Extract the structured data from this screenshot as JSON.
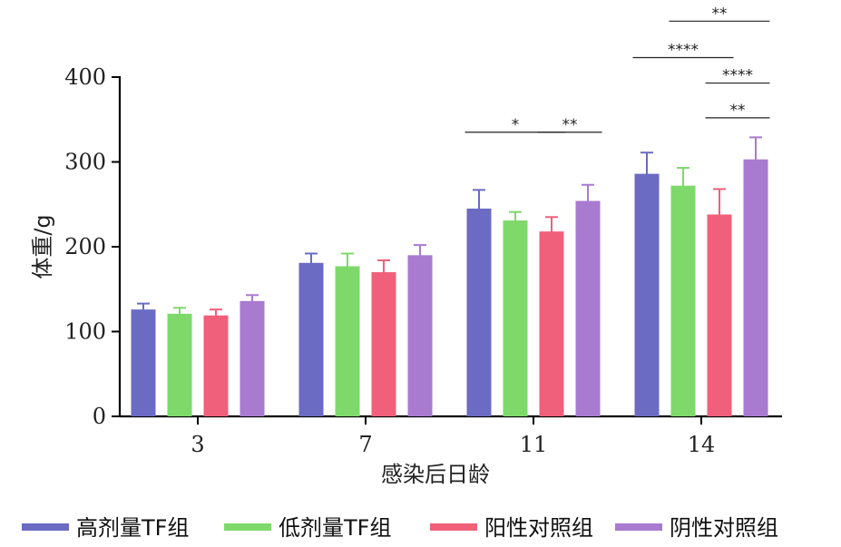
{
  "chart_data": {
    "type": "bar",
    "xlabel": "感染后日龄",
    "ylabel": "体重/g",
    "ylim": [
      0,
      400
    ],
    "yticks": [
      0,
      100,
      200,
      300,
      400
    ],
    "categories": [
      "3",
      "7",
      "11",
      "14"
    ],
    "series": [
      {
        "name": "高剂量TF组",
        "color": "#6b6bc4",
        "values": [
          126,
          181,
          245,
          286
        ],
        "errors": [
          7,
          11,
          22,
          25
        ]
      },
      {
        "name": "低剂量TF组",
        "color": "#7ed96a",
        "values": [
          121,
          177,
          231,
          272
        ],
        "errors": [
          7,
          15,
          10,
          21
        ]
      },
      {
        "name": "阳性对照组",
        "color": "#f0607a",
        "values": [
          119,
          170,
          218,
          238
        ],
        "errors": [
          7,
          14,
          17,
          30
        ]
      },
      {
        "name": "阴性对照组",
        "color": "#a87ad0",
        "values": [
          136,
          190,
          254,
          303
        ],
        "errors": [
          7,
          12,
          19,
          26
        ]
      }
    ],
    "annotations": [
      {
        "text": "*",
        "category": "11",
        "from_series": 0,
        "to_series": 2,
        "y": 335
      },
      {
        "text": "**",
        "category": "11",
        "from_series": 2,
        "to_series": 3,
        "y": 335
      },
      {
        "text": "**",
        "category": "14",
        "from_series": 2,
        "to_series": 3,
        "y": 352
      },
      {
        "text": "****",
        "category": "14",
        "from_series": 0,
        "to_series": 2,
        "y": 423
      },
      {
        "text": "****",
        "category": "14",
        "from_series": 2,
        "to_series": 3,
        "y": 393
      },
      {
        "text": "**",
        "category": "14",
        "from_series": 1,
        "to_series": 3,
        "y": 466
      }
    ],
    "legend_position": "bottom",
    "grid": false
  }
}
